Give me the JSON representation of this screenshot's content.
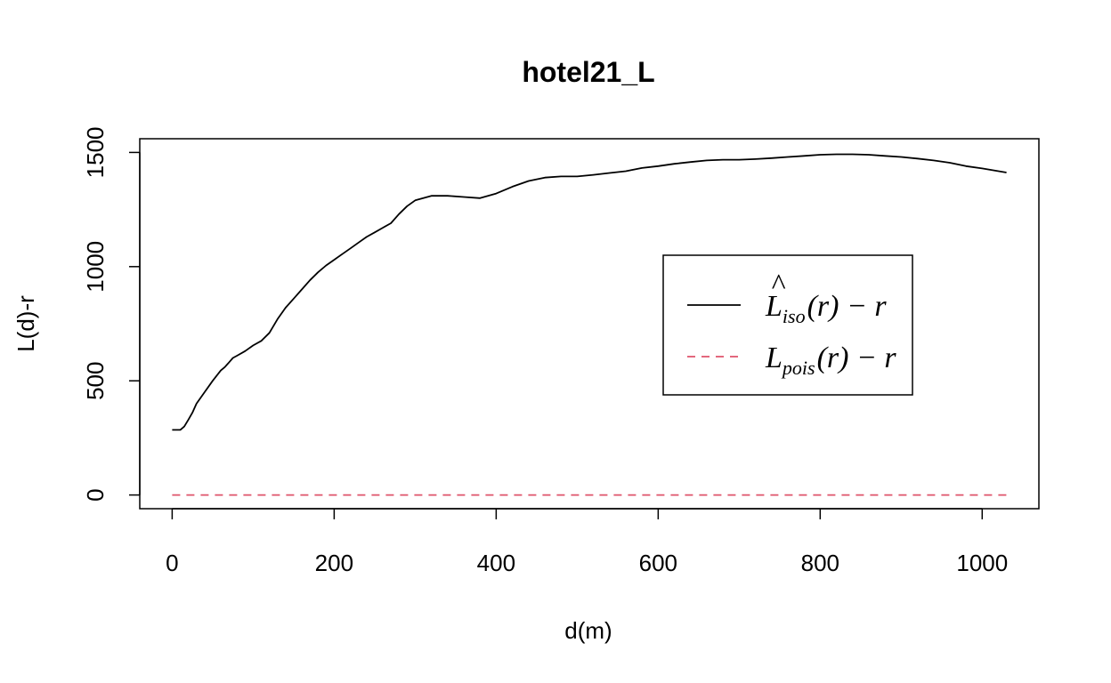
{
  "chart_data": {
    "type": "line",
    "title": "hotel21_L",
    "xlabel": "d(m)",
    "ylabel": "L(d)-r",
    "xlim": [
      -40,
      1070
    ],
    "ylim": [
      -60,
      1560
    ],
    "x_ticks": [
      0,
      200,
      400,
      600,
      800,
      1000
    ],
    "y_ticks": [
      0,
      500,
      1000,
      1500
    ],
    "x_tick_labels": [
      "0",
      "200",
      "400",
      "600",
      "800",
      "1000"
    ],
    "y_tick_labels": [
      "0",
      "500",
      "1000",
      "1500"
    ],
    "grid": false,
    "legend_position": "right",
    "colors": {
      "iso": "#000000",
      "pois": "#DF536B",
      "frame": "#000000"
    },
    "series": [
      {
        "key": "iso",
        "style": "solid",
        "x": [
          0,
          10,
          15,
          20,
          25,
          30,
          40,
          50,
          60,
          65,
          70,
          75,
          80,
          90,
          100,
          110,
          120,
          130,
          140,
          150,
          160,
          170,
          180,
          190,
          200,
          210,
          220,
          230,
          240,
          250,
          260,
          270,
          280,
          290,
          300,
          320,
          340,
          360,
          380,
          400,
          420,
          440,
          460,
          480,
          500,
          520,
          540,
          560,
          580,
          600,
          620,
          640,
          660,
          680,
          700,
          720,
          740,
          760,
          780,
          800,
          820,
          840,
          860,
          880,
          900,
          920,
          940,
          960,
          980,
          1000,
          1030
        ],
        "y": [
          285,
          285,
          300,
          330,
          360,
          400,
          450,
          500,
          545,
          560,
          580,
          600,
          610,
          630,
          655,
          675,
          710,
          770,
          820,
          860,
          900,
          940,
          975,
          1005,
          1030,
          1055,
          1080,
          1105,
          1130,
          1150,
          1170,
          1190,
          1230,
          1265,
          1290,
          1310,
          1310,
          1305,
          1300,
          1320,
          1350,
          1375,
          1390,
          1395,
          1395,
          1402,
          1410,
          1418,
          1432,
          1440,
          1450,
          1458,
          1465,
          1468,
          1468,
          1471,
          1475,
          1480,
          1485,
          1490,
          1492,
          1492,
          1490,
          1485,
          1480,
          1473,
          1465,
          1455,
          1440,
          1430,
          1412
        ]
      },
      {
        "key": "pois",
        "style": "dashed",
        "x": [
          0,
          1030
        ],
        "y": [
          0,
          0
        ]
      }
    ],
    "legend": [
      {
        "key": "iso",
        "main": "L",
        "hat": "^",
        "sub": "iso",
        "suffix": "(r) − r"
      },
      {
        "key": "pois",
        "main": "L",
        "hat": "",
        "sub": "pois",
        "suffix": "(r) − r"
      }
    ]
  }
}
